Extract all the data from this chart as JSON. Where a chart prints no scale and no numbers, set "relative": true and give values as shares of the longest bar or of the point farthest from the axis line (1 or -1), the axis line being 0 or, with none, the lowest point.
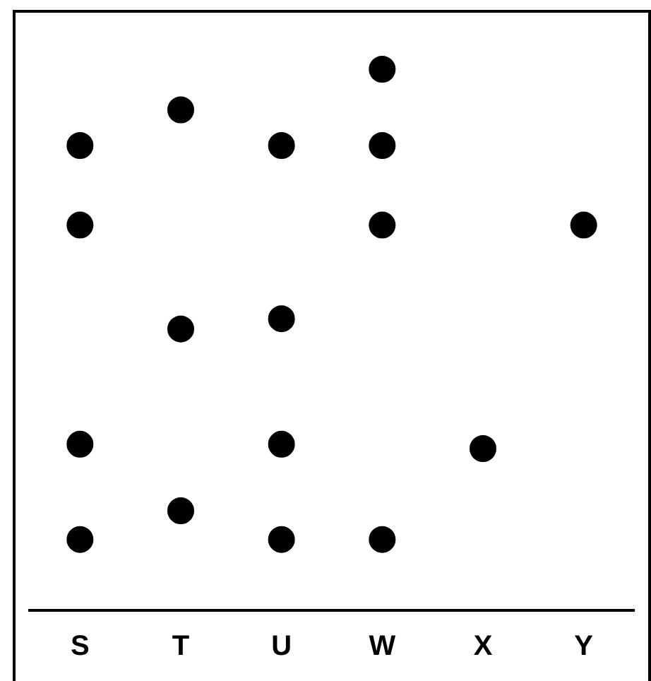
{
  "chart_data": {
    "type": "scatter",
    "relative": true,
    "categories": [
      "S",
      "T",
      "U",
      "W",
      "X",
      "Y"
    ],
    "series": [
      {
        "color": "#000000",
        "x": [
          "S",
          "S",
          "S",
          "S",
          "T",
          "T",
          "T",
          "U",
          "U",
          "U",
          "U",
          "W",
          "W",
          "W",
          "W",
          "X",
          "Y"
        ],
        "values": [
          0.859,
          0.712,
          0.307,
          0.131,
          0.925,
          0.52,
          0.184,
          0.859,
          0.539,
          0.307,
          0.131,
          1,
          0.859,
          0.712,
          0.131,
          0.299,
          0.712
        ]
      }
    ],
    "marker": "circle",
    "grid": false,
    "legend": false
  }
}
